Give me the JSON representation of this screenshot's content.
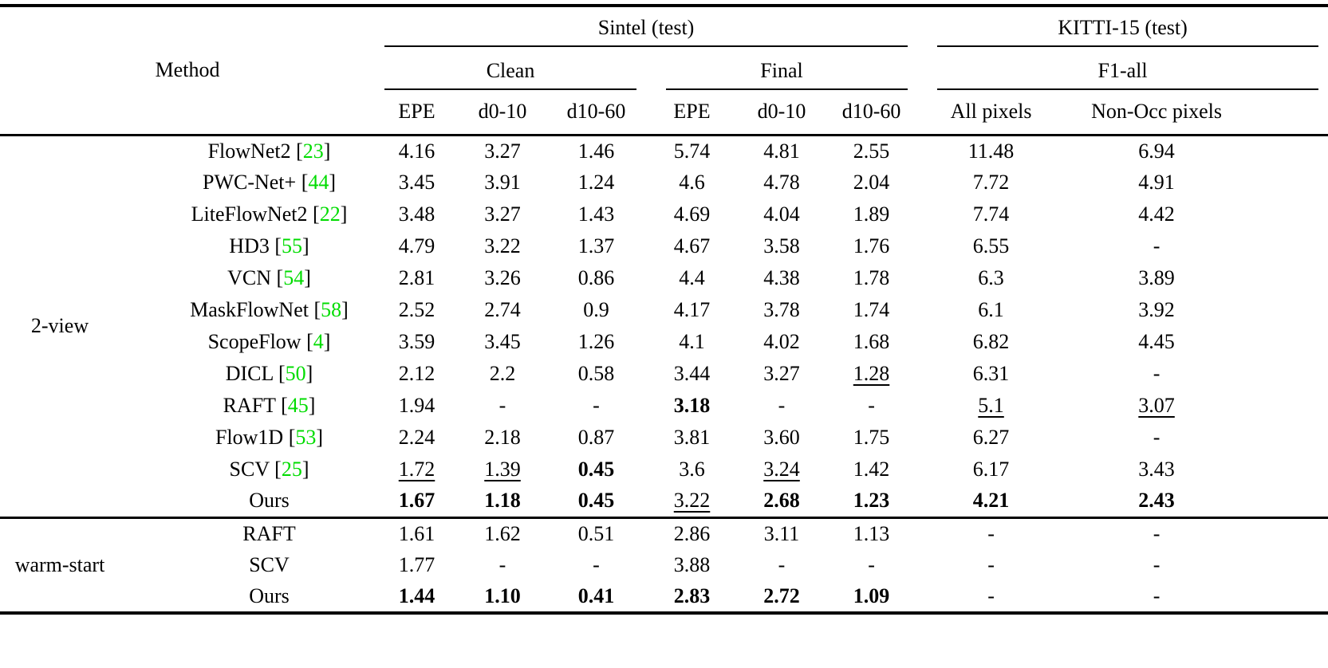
{
  "colors": {
    "citation_green": "#00DC00"
  },
  "header": {
    "method_label": "Method",
    "groups": [
      {
        "label": "Sintel (test)"
      },
      {
        "label": "KITTI-15 (test)"
      }
    ],
    "subgroups": [
      {
        "label": "Clean",
        "cols": [
          "EPE",
          "d0-10",
          "d10-60"
        ]
      },
      {
        "label": "Final",
        "cols": [
          "EPE",
          "d0-10",
          "d10-60"
        ]
      },
      {
        "label": "F1-all",
        "cols": [
          "All pixels",
          "Non-Occ pixels"
        ]
      }
    ]
  },
  "body": {
    "row_groups": [
      {
        "label": "2-view",
        "rows": [
          {
            "method": "FlowNet2",
            "cite": "23",
            "values": [
              "4.16",
              "3.27",
              "1.46",
              "5.74",
              "4.81",
              "2.55",
              "11.48",
              "6.94"
            ]
          },
          {
            "method": "PWC-Net+",
            "cite": "44",
            "values": [
              "3.45",
              "3.91",
              "1.24",
              "4.6",
              "4.78",
              "2.04",
              "7.72",
              "4.91"
            ]
          },
          {
            "method": "LiteFlowNet2",
            "cite": "22",
            "values": [
              "3.48",
              "3.27",
              "1.43",
              "4.69",
              "4.04",
              "1.89",
              "7.74",
              "4.42"
            ]
          },
          {
            "method": "HD3",
            "cite": "55",
            "values": [
              "4.79",
              "3.22",
              "1.37",
              "4.67",
              "3.58",
              "1.76",
              "6.55",
              "-"
            ]
          },
          {
            "method": "VCN",
            "cite": "54",
            "values": [
              "2.81",
              "3.26",
              "0.86",
              "4.4",
              "4.38",
              "1.78",
              "6.3",
              "3.89"
            ]
          },
          {
            "method": "MaskFlowNet",
            "cite": "58",
            "values": [
              "2.52",
              "2.74",
              "0.9",
              "4.17",
              "3.78",
              "1.74",
              "6.1",
              "3.92"
            ]
          },
          {
            "method": "ScopeFlow",
            "cite": "4",
            "values": [
              "3.59",
              "3.45",
              "1.26",
              "4.1",
              "4.02",
              "1.68",
              "6.82",
              "4.45"
            ]
          },
          {
            "method": "DICL",
            "cite": "50",
            "values": [
              "2.12",
              "2.2",
              "0.58",
              "3.44",
              "3.27",
              {
                "t": "1.28",
                "em": "u"
              },
              "6.31",
              "-"
            ]
          },
          {
            "method": "RAFT",
            "cite": "45",
            "values": [
              "1.94",
              "-",
              "-",
              {
                "t": "3.18",
                "em": "b"
              },
              "-",
              "-",
              {
                "t": "5.1",
                "em": "u"
              },
              {
                "t": "3.07",
                "em": "u"
              }
            ]
          },
          {
            "method": "Flow1D",
            "cite": "53",
            "values": [
              "2.24",
              "2.18",
              "0.87",
              "3.81",
              "3.60",
              "1.75",
              "6.27",
              "-"
            ]
          },
          {
            "method": "SCV",
            "cite": "25",
            "values": [
              {
                "t": "1.72",
                "em": "u"
              },
              {
                "t": "1.39",
                "em": "u"
              },
              {
                "t": "0.45",
                "em": "b"
              },
              "3.6",
              {
                "t": "3.24",
                "em": "u"
              },
              "1.42",
              "6.17",
              "3.43"
            ]
          },
          {
            "method": "Ours",
            "values": [
              {
                "t": "1.67",
                "em": "b"
              },
              {
                "t": "1.18",
                "em": "b"
              },
              {
                "t": "0.45",
                "em": "b"
              },
              {
                "t": "3.22",
                "em": "u"
              },
              {
                "t": "2.68",
                "em": "b"
              },
              {
                "t": "1.23",
                "em": "b"
              },
              {
                "t": "4.21",
                "em": "b"
              },
              {
                "t": "2.43",
                "em": "b"
              }
            ]
          }
        ]
      },
      {
        "label": "warm-start",
        "rows": [
          {
            "method": "RAFT",
            "values": [
              "1.61",
              "1.62",
              "0.51",
              "2.86",
              "3.11",
              "1.13",
              "-",
              "-"
            ]
          },
          {
            "method": "SCV",
            "values": [
              "1.77",
              "-",
              "-",
              "3.88",
              "-",
              "-",
              "-",
              "-"
            ]
          },
          {
            "method": "Ours",
            "values": [
              {
                "t": "1.44",
                "em": "b"
              },
              {
                "t": "1.10",
                "em": "b"
              },
              {
                "t": "0.41",
                "em": "b"
              },
              {
                "t": "2.83",
                "em": "b"
              },
              {
                "t": "2.72",
                "em": "b"
              },
              {
                "t": "1.09",
                "em": "b"
              },
              "-",
              "-"
            ]
          }
        ]
      }
    ]
  }
}
